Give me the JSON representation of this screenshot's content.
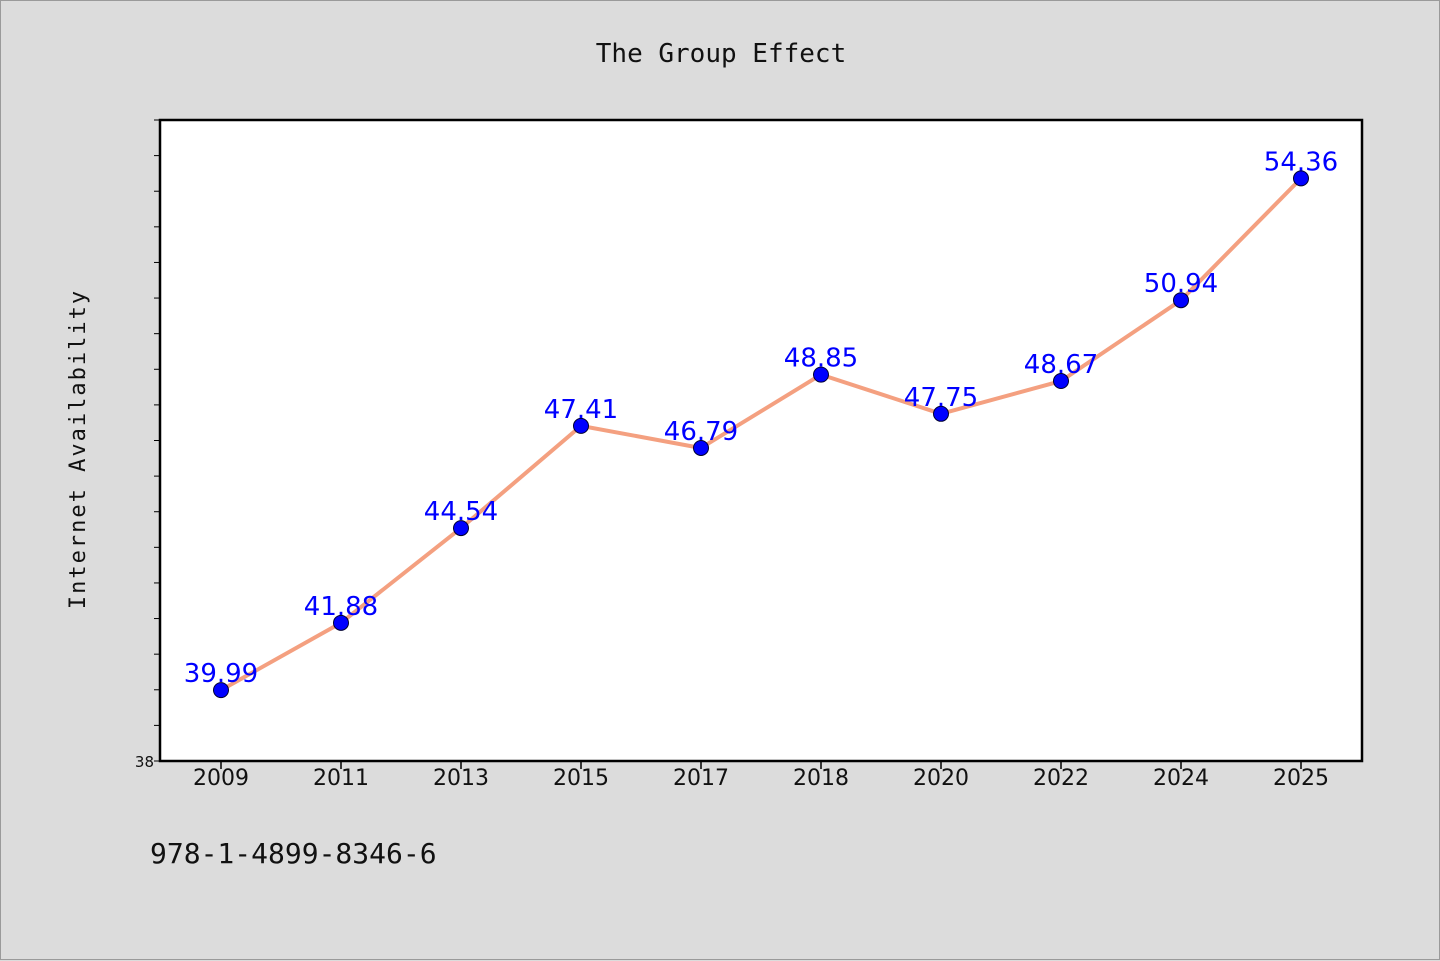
{
  "chart_data": {
    "type": "line",
    "title": "The Group Effect",
    "xlabel": "",
    "ylabel": "Internet Availability",
    "categories": [
      "2009",
      "2011",
      "2013",
      "2015",
      "2017",
      "2018",
      "2020",
      "2022",
      "2024",
      "2025"
    ],
    "series": [
      {
        "values": [
          39.99,
          41.88,
          44.54,
          47.41,
          46.79,
          48.85,
          47.75,
          48.67,
          50.94,
          54.36
        ],
        "data_labels": [
          "39.99",
          "41.88",
          "44.54",
          "47.41",
          "46.79",
          "48.85",
          "47.75",
          "48.67",
          "50.94",
          "54.36"
        ]
      }
    ],
    "ylim": [
      38,
      56
    ],
    "y_tick_labels": [
      "38"
    ],
    "grid": false,
    "legend": "none",
    "colors": {
      "line": "#f4a080",
      "marker": "#0000ff",
      "data_label": "#0000ff",
      "plot_background": "#ffffff",
      "page_background": "#dcdcdc"
    }
  },
  "footer": {
    "isbn": "978-1-4899-8346-6"
  }
}
